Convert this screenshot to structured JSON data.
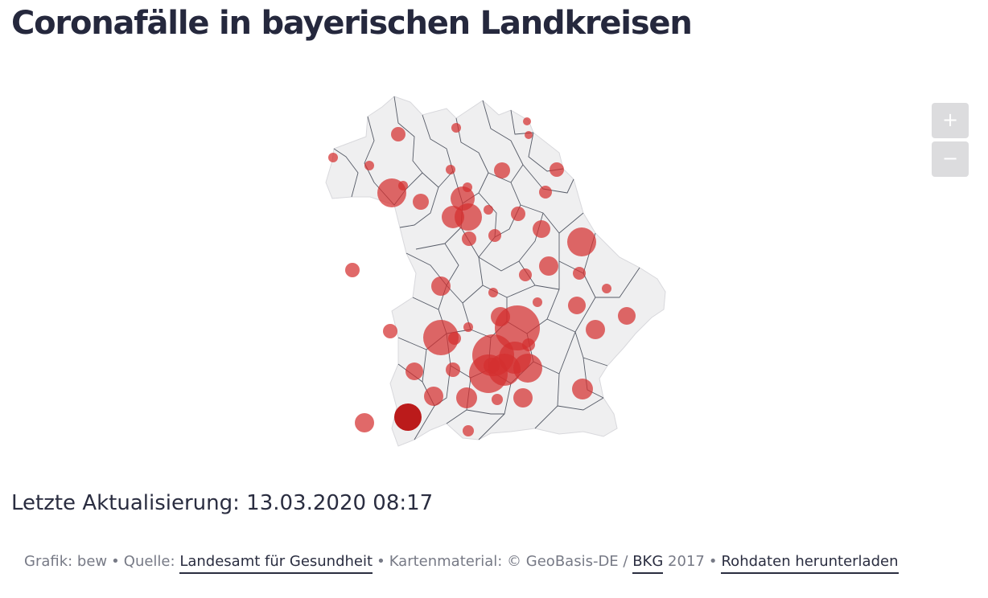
{
  "title": "Coronafälle in bayerischen Landkreisen",
  "updated": "Letzte Aktualisierung: 13.03.2020 08:17",
  "zoom": {
    "in_label": "+",
    "out_label": "−"
  },
  "footer": {
    "grafik": "Grafik: bew",
    "quelle_prefix": "Quelle:",
    "quelle_link": "Landesamt für Gesundheit",
    "karten_prefix": "Kartenmaterial: © GeoBasis-DE /",
    "bkg_link": "BKG",
    "year": "2017",
    "rohdaten_link": "Rohdaten herunterladen",
    "separator": "•"
  },
  "colors": {
    "land": "#efeff0",
    "border": "#555a66",
    "bubble": "#d42f2f",
    "bubble_dark": "#b70f0f",
    "zoom_bg": "#dcdcde"
  }
}
